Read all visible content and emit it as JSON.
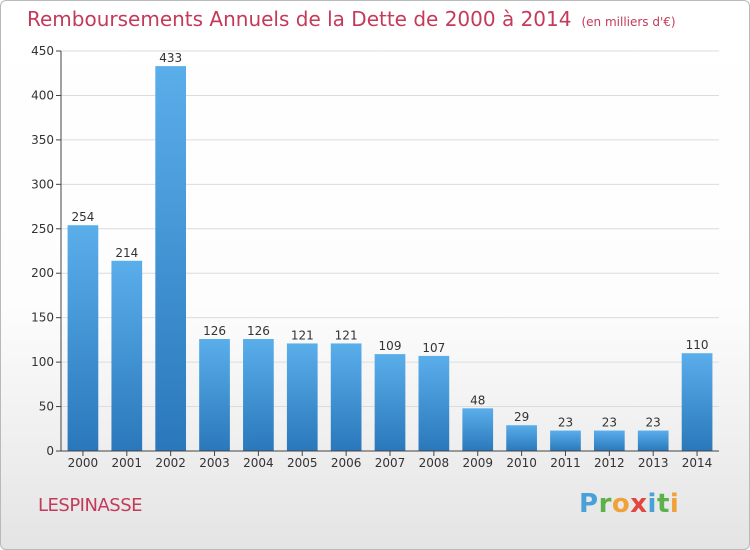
{
  "header": {
    "title": "Remboursements Annuels de la Dette de 2000 à 2014",
    "unit": "(en milliers d'€)"
  },
  "footer": {
    "commune": "LESPINASSE",
    "logo_text": "Proxiti"
  },
  "colors": {
    "title": "#c43a5a",
    "bar_top": "#5aaeea",
    "bar_bottom": "#2a78bb",
    "axis": "#444444",
    "grid": "#dcdcdc"
  },
  "chart_data": {
    "type": "bar",
    "title": "Remboursements Annuels de la Dette de 2000 à 2014",
    "xlabel": "",
    "ylabel": "",
    "ylim": [
      0,
      450
    ],
    "yticks": [
      0,
      50,
      100,
      150,
      200,
      250,
      300,
      350,
      400,
      450
    ],
    "categories": [
      "2000",
      "2001",
      "2002",
      "2003",
      "2004",
      "2005",
      "2006",
      "2007",
      "2008",
      "2009",
      "2010",
      "2011",
      "2012",
      "2013",
      "2014"
    ],
    "values": [
      254,
      214,
      433,
      126,
      126,
      121,
      121,
      109,
      107,
      48,
      29,
      23,
      23,
      23,
      110
    ],
    "grid": true,
    "legend": "none"
  }
}
